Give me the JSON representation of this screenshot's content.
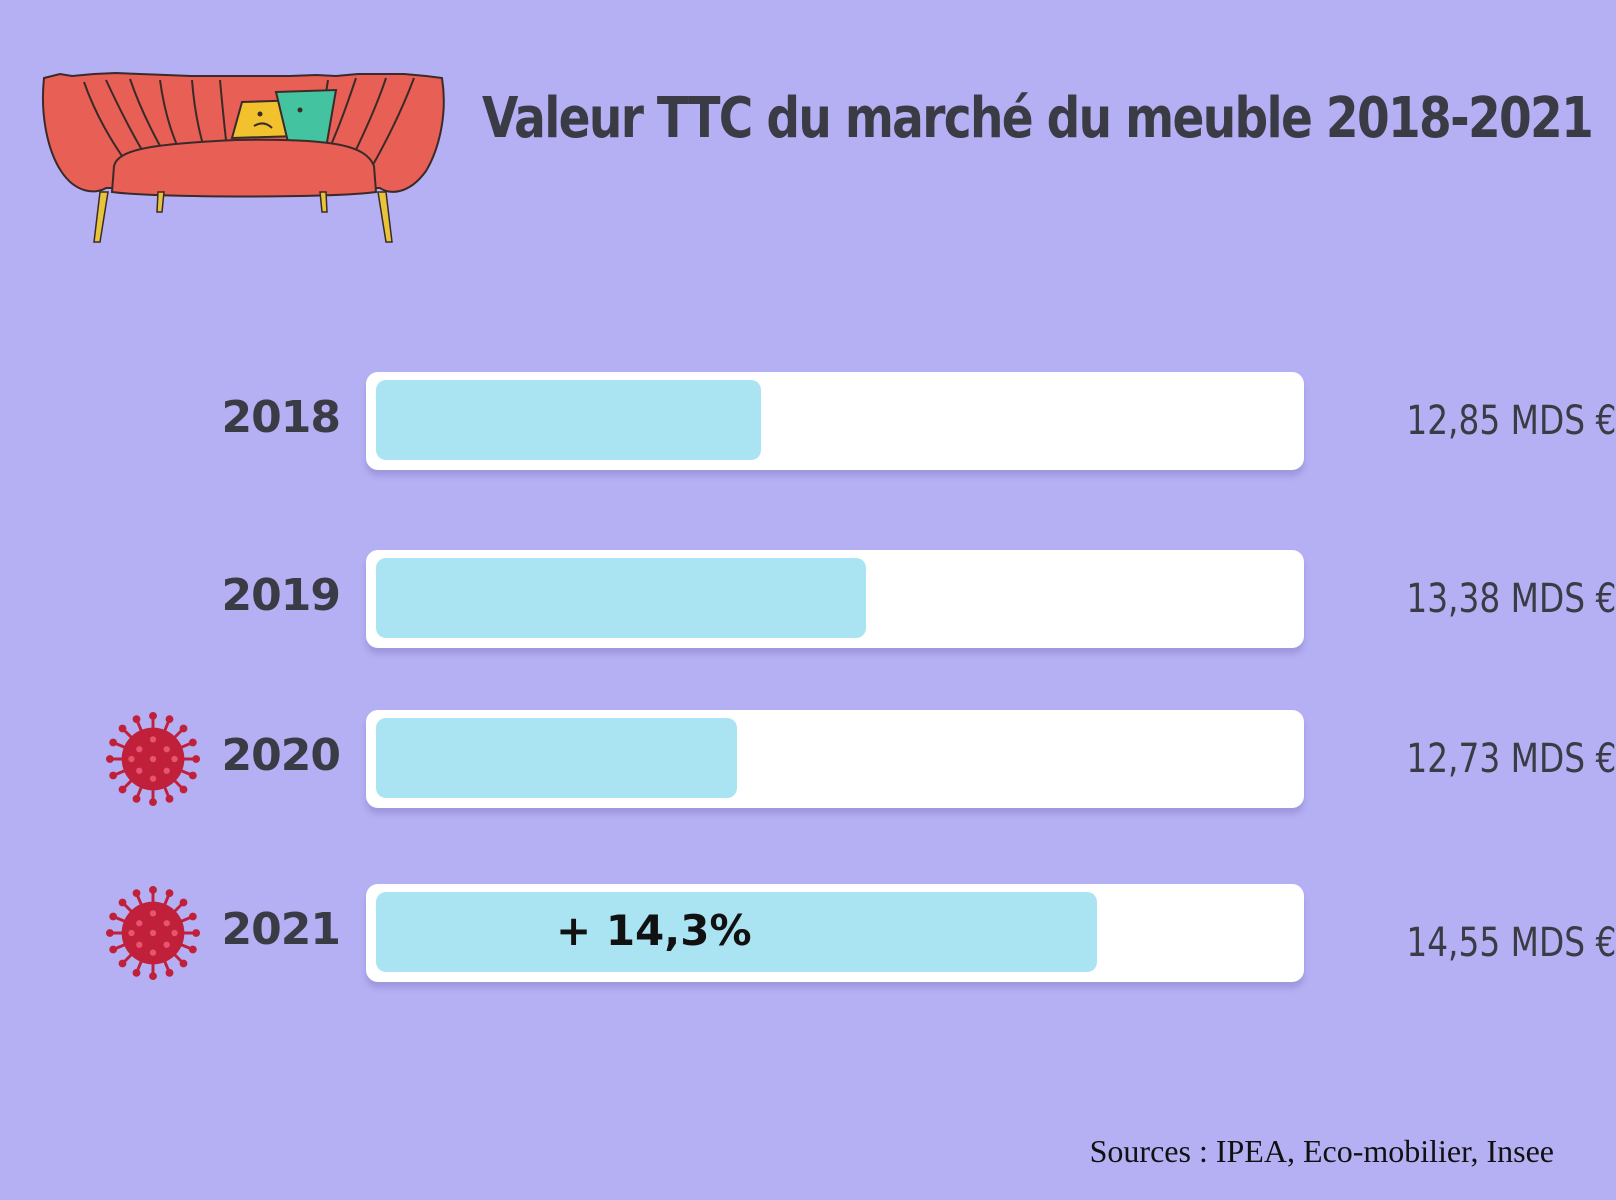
{
  "title": "Valeur TTC du marché du meuble 2018-2021",
  "sources": "Sources : IPEA, Eco-mobilier, Insee",
  "icons": {
    "header": "sofa-icon",
    "pandemic_marker": "virus-icon"
  },
  "colors": {
    "background": "#b5b0f3",
    "bar_fill": "#aae3f2",
    "track": "#ffffff",
    "text": "#3b3b45",
    "virus": "#c0203a"
  },
  "chart_data": {
    "type": "bar",
    "orientation": "horizontal",
    "title": "Valeur TTC du marché du meuble 2018-2021",
    "categories": [
      "2018",
      "2019",
      "2020",
      "2021"
    ],
    "values": [
      12.85,
      13.38,
      12.73,
      14.55
    ],
    "value_labels": [
      "12,85 MDS €",
      "13,38 MDS €",
      "12,73 MDS €",
      "14,55 MDS €"
    ],
    "xlim": [
      10.9,
      15.55
    ],
    "annotations": [
      {
        "category": "2021",
        "text": "+ 14,3%"
      }
    ],
    "markers": [
      {
        "category": "2020",
        "icon": "virus-icon"
      },
      {
        "category": "2021",
        "icon": "virus-icon"
      }
    ],
    "grid": false,
    "legend": "none"
  }
}
